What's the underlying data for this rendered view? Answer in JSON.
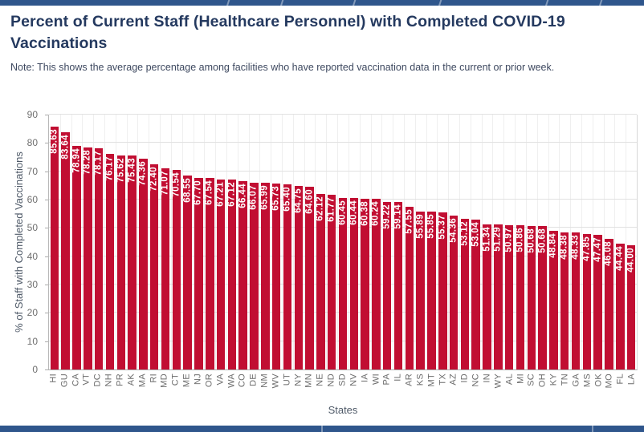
{
  "header": {
    "title": "Percent of Current Staff (Healthcare Personnel) with Completed COVID-19 Vaccinations",
    "note": "Note: This shows the average percentage among facilities who have reported vaccination data in the current or prior week."
  },
  "chart_data": {
    "type": "bar",
    "title": "Percent of Current Staff (Healthcare Personnel) with Completed COVID-19 Vaccinations",
    "xlabel": "States",
    "ylabel": "% of Staff with Completed Vaccinations",
    "ylim": [
      0,
      90
    ],
    "ytick_step": 10,
    "grid": "horizontal and vertical light gray",
    "legend": "none",
    "bar_color": "#C10E32",
    "value_label_color": "#FFFFFF",
    "categories": [
      "HI",
      "GU",
      "CA",
      "VT",
      "DC",
      "NH",
      "PR",
      "AK",
      "MA",
      "RI",
      "MD",
      "CT",
      "ME",
      "NJ",
      "OR",
      "VA",
      "WA",
      "CO",
      "DE",
      "NM",
      "WV",
      "UT",
      "NY",
      "MN",
      "NE",
      "ND",
      "SD",
      "NV",
      "IA",
      "WI",
      "PA",
      "IL",
      "AR",
      "KS",
      "MT",
      "TX",
      "AZ",
      "ID",
      "NC",
      "IN",
      "WY",
      "AL",
      "MI",
      "SC",
      "OH",
      "KY",
      "TN",
      "GA",
      "MS",
      "OK",
      "MO",
      "FL",
      "LA"
    ],
    "values": [
      85.63,
      83.64,
      78.94,
      78.28,
      78.17,
      76.17,
      75.62,
      75.43,
      74.36,
      72.4,
      71.07,
      70.54,
      68.55,
      67.7,
      67.54,
      67.21,
      67.12,
      66.44,
      66.07,
      65.99,
      65.73,
      65.4,
      64.75,
      64.6,
      62.12,
      61.77,
      60.45,
      60.44,
      60.38,
      60.24,
      59.22,
      59.14,
      57.55,
      55.89,
      55.85,
      55.37,
      54.36,
      53.12,
      53.04,
      51.34,
      51.29,
      50.97,
      50.86,
      50.68,
      50.68,
      48.84,
      48.38,
      48.33,
      47.85,
      47.47,
      46.08,
      44.44,
      44.0
    ]
  },
  "colors": {
    "strip_navy": "#2F568C",
    "title_navy": "#24395F",
    "note_text": "#3E4960",
    "axis_label": "#4F5A68",
    "tick_label": "#6F6F6F"
  }
}
